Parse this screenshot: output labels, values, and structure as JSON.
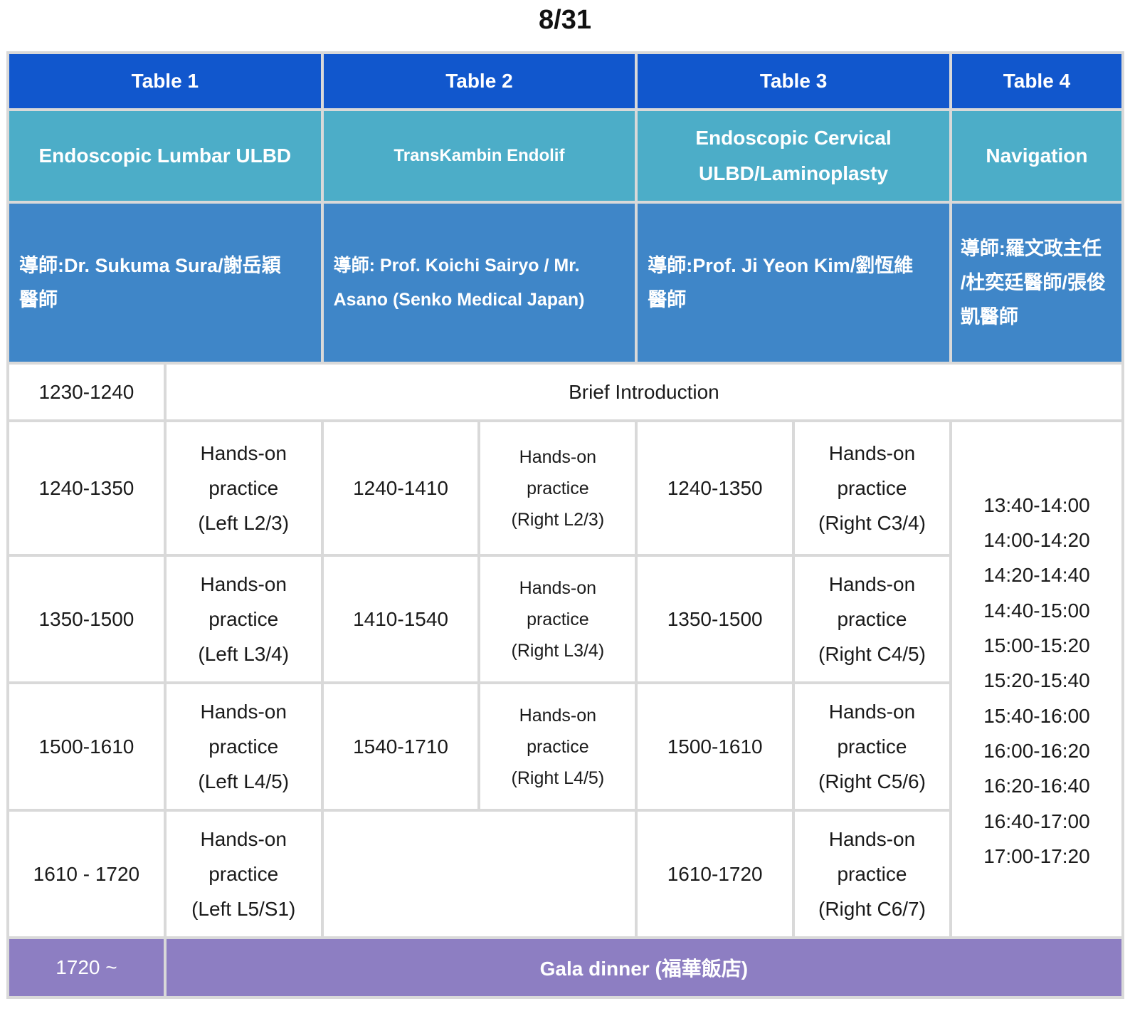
{
  "title": "8/31",
  "headers": [
    "Table 1",
    "Table 2",
    "Table 3",
    "Table 4"
  ],
  "topics": {
    "t1": "Endoscopic Lumbar ULBD",
    "t2": "TransKambin Endolif",
    "t3_line1": "Endoscopic Cervical",
    "t3_line2": "ULBD/Laminoplasty",
    "t4": "Navigation"
  },
  "tutors": {
    "t1_line1": "導師:Dr. Sukuma Sura/謝岳穎",
    "t1_line2": "醫師",
    "t2_line1": "導師: Prof. Koichi Sairyo / Mr.",
    "t2_line2": "Asano (Senko Medical Japan)",
    "t3_line1": "導師:Prof. Ji Yeon Kim/劉恆維",
    "t3_line2": "醫師",
    "t4_line1": "導師:羅文政主任",
    "t4_line2": "/杜奕廷醫師/張俊",
    "t4_line3": "凱醫師"
  },
  "intro": {
    "time": "1230-1240",
    "label": "Brief Introduction"
  },
  "rows": [
    {
      "t1_time": "1240-1350",
      "t1_practice": [
        "Hands-on",
        "practice",
        "(Left L2/3)"
      ],
      "t2_time": "1240-1410",
      "t2_practice": [
        "Hands-on",
        "practice",
        "(Right L2/3)"
      ],
      "t3_time": "1240-1350",
      "t3_practice": [
        "Hands-on",
        "practice",
        "(Right C3/4)"
      ]
    },
    {
      "t1_time": "1350-1500",
      "t1_practice": [
        "Hands-on",
        "practice",
        "(Left L3/4)"
      ],
      "t2_time": "1410-1540",
      "t2_practice": [
        "Hands-on",
        "practice",
        "(Right L3/4)"
      ],
      "t3_time": "1350-1500",
      "t3_practice": [
        "Hands-on",
        "practice",
        "(Right C4/5)"
      ]
    },
    {
      "t1_time": "1500-1610",
      "t1_practice": [
        "Hands-on",
        "practice",
        "(Left L4/5)"
      ],
      "t2_time": "1540-1710",
      "t2_practice": [
        "Hands-on",
        "practice",
        "(Right L4/5)"
      ],
      "t3_time": "1500-1610",
      "t3_practice": [
        "Hands-on",
        "practice",
        "(Right C5/6)"
      ]
    },
    {
      "t1_time": "1610 - 1720",
      "t1_practice": [
        "Hands-on",
        "practice",
        "(Left L5/S1)"
      ],
      "t3_time": "1610-1720",
      "t3_practice": [
        "Hands-on",
        "practice",
        "(Right C6/7)"
      ]
    }
  ],
  "navigation_times": [
    "13:40-14:00",
    "14:00-14:20",
    "14:20-14:40",
    "14:40-15:00",
    "15:00-15:20",
    "15:20-15:40",
    "15:40-16:00",
    "16:00-16:20",
    "16:20-16:40",
    "16:40-17:00",
    "17:00-17:20"
  ],
  "gala": {
    "time": "1720 ~",
    "label": "Gala dinner (福華飯店)"
  },
  "colors": {
    "header": "#1157cd",
    "topic": "#4cadc8",
    "tutor": "#3f86c8",
    "gala": "#8d7ec2",
    "grid": "#d9d9d9"
  }
}
